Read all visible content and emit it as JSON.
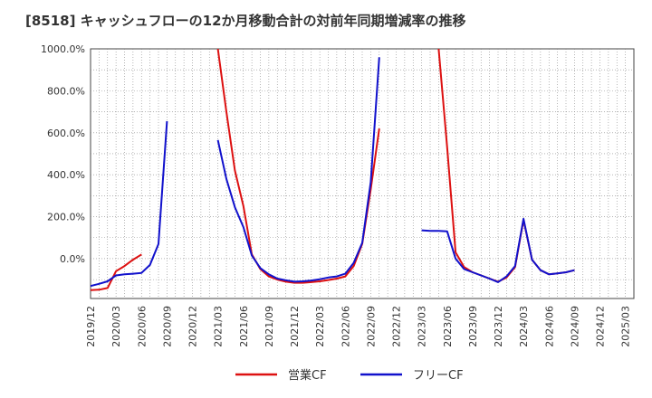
{
  "chart_data": {
    "type": "line",
    "title": "[8518]  キャッシュフローの12か月移動合計の対前年同期増減率の推移",
    "xlabel": "",
    "ylabel": "",
    "ylim": [
      -190,
      1000
    ],
    "y_ticks": [
      0,
      200,
      400,
      600,
      800,
      1000
    ],
    "y_tick_labels": [
      "0.0%",
      "200.0%",
      "400.0%",
      "600.0%",
      "800.0%",
      "1000.0%"
    ],
    "x_tick_labels": [
      "2019/12",
      "2020/03",
      "2020/06",
      "2020/09",
      "2020/12",
      "2021/03",
      "2021/06",
      "2021/09",
      "2021/12",
      "2022/03",
      "2022/06",
      "2022/09",
      "2022/12",
      "2023/03",
      "2023/06",
      "2023/09",
      "2023/12",
      "2024/03",
      "2024/06",
      "2024/09",
      "2024/12",
      "2025/03"
    ],
    "month_start": "2019/12",
    "month_count": 64,
    "grid": true,
    "legend_position": "bottom-center",
    "series": [
      {
        "name": "営業CF",
        "color": "#dd1111",
        "values": [
          [
            0,
            -150
          ],
          [
            1,
            -148
          ],
          [
            2,
            -140
          ],
          [
            3,
            -60
          ],
          [
            4,
            -35
          ],
          [
            5,
            -5
          ],
          [
            6,
            20
          ],
          [
            15,
            1000
          ],
          [
            16,
            700
          ],
          [
            17,
            420
          ],
          [
            18,
            250
          ],
          [
            19,
            20
          ],
          [
            20,
            -50
          ],
          [
            21,
            -85
          ],
          [
            22,
            -100
          ],
          [
            23,
            -110
          ],
          [
            24,
            -115
          ],
          [
            25,
            -115
          ],
          [
            26,
            -112
          ],
          [
            27,
            -108
          ],
          [
            28,
            -102
          ],
          [
            29,
            -95
          ],
          [
            30,
            -85
          ],
          [
            31,
            -35
          ],
          [
            32,
            70
          ],
          [
            33,
            330
          ],
          [
            34,
            620
          ],
          [
            41,
            1000
          ],
          [
            42,
            530
          ],
          [
            43,
            30
          ],
          [
            44,
            -40
          ],
          [
            45,
            -65
          ],
          [
            46,
            -80
          ],
          [
            47,
            -95
          ],
          [
            48,
            -110
          ],
          [
            49,
            -90
          ],
          [
            50,
            -40
          ],
          [
            51,
            185
          ],
          [
            52,
            -5
          ],
          [
            53,
            -55
          ],
          [
            54,
            -75
          ],
          [
            55,
            -70
          ],
          [
            56,
            -65
          ],
          [
            57,
            -55
          ]
        ]
      },
      {
        "name": "フリーCF",
        "color": "#1111cc",
        "values": [
          [
            0,
            -130
          ],
          [
            1,
            -120
          ],
          [
            2,
            -108
          ],
          [
            3,
            -80
          ],
          [
            4,
            -75
          ],
          [
            5,
            -72
          ],
          [
            6,
            -68
          ],
          [
            7,
            -30
          ],
          [
            8,
            70
          ],
          [
            9,
            655
          ],
          [
            15,
            565
          ],
          [
            16,
            380
          ],
          [
            17,
            245
          ],
          [
            18,
            150
          ],
          [
            19,
            15
          ],
          [
            20,
            -45
          ],
          [
            21,
            -75
          ],
          [
            22,
            -95
          ],
          [
            23,
            -103
          ],
          [
            24,
            -110
          ],
          [
            25,
            -108
          ],
          [
            26,
            -104
          ],
          [
            27,
            -98
          ],
          [
            28,
            -90
          ],
          [
            29,
            -85
          ],
          [
            30,
            -72
          ],
          [
            31,
            -20
          ],
          [
            32,
            75
          ],
          [
            33,
            365
          ],
          [
            34,
            960
          ],
          [
            39,
            135
          ],
          [
            40,
            132
          ],
          [
            41,
            132
          ],
          [
            42,
            130
          ],
          [
            43,
            0
          ],
          [
            44,
            -50
          ],
          [
            45,
            -65
          ],
          [
            46,
            -80
          ],
          [
            47,
            -95
          ],
          [
            48,
            -112
          ],
          [
            49,
            -85
          ],
          [
            50,
            -35
          ],
          [
            51,
            190
          ],
          [
            52,
            -5
          ],
          [
            53,
            -55
          ],
          [
            54,
            -75
          ],
          [
            55,
            -70
          ],
          [
            56,
            -65
          ],
          [
            57,
            -55
          ]
        ]
      }
    ]
  }
}
